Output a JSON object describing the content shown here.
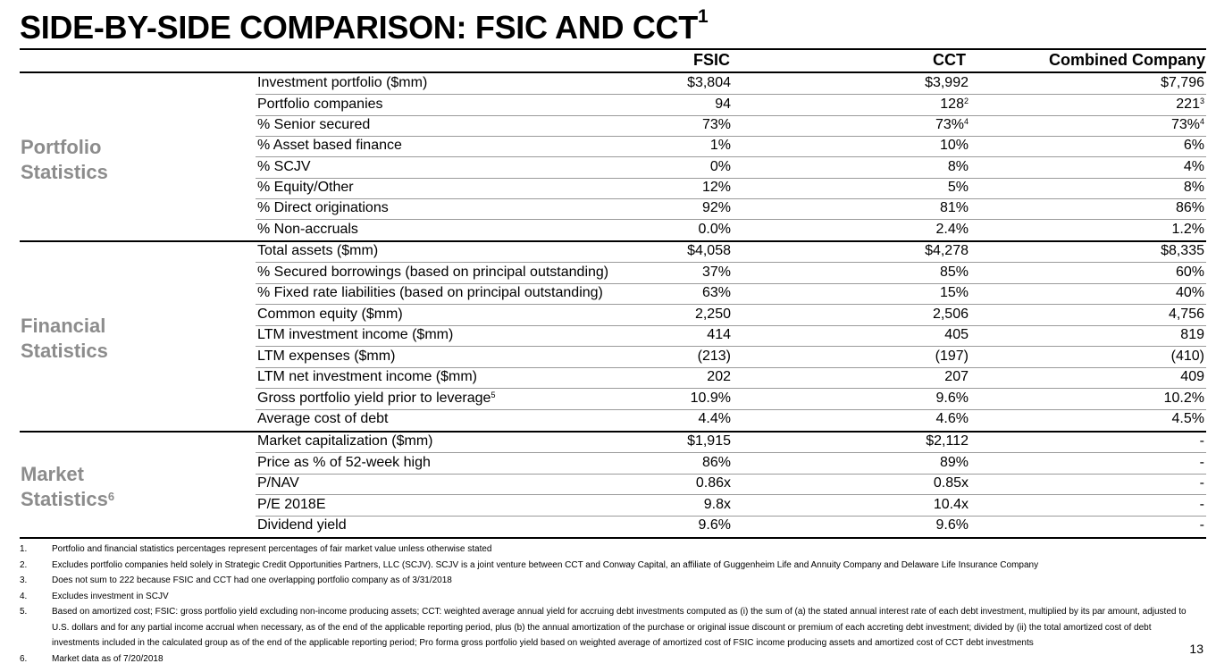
{
  "title": "SIDE-BY-SIDE COMPARISON: FSIC AND CCT",
  "title_sup": "1",
  "columns": {
    "fsic": "FSIC",
    "cct": "CCT",
    "combined": "Combined Company"
  },
  "sections": [
    {
      "label_line1": "Portfolio",
      "label_line2": "Statistics",
      "label_sup": ""
    },
    {
      "label_line1": "Financial",
      "label_line2": "Statistics",
      "label_sup": ""
    },
    {
      "label_line1": "Market",
      "label_line2": "Statistics",
      "label_sup": "6"
    }
  ],
  "rows": [
    {
      "label": "Investment portfolio ($mm)",
      "label_sup": "",
      "fsic": "$3,804",
      "cct": "$3,992",
      "cct_sup": "",
      "combined": "$7,796",
      "combined_sup": ""
    },
    {
      "label": "Portfolio companies",
      "label_sup": "",
      "fsic": "94",
      "cct": "128",
      "cct_sup": "2",
      "combined": "221",
      "combined_sup": "3"
    },
    {
      "label": "% Senior secured",
      "label_sup": "",
      "fsic": "73%",
      "cct": "73%",
      "cct_sup": "4",
      "combined": "73%",
      "combined_sup": "4"
    },
    {
      "label": "% Asset based finance",
      "label_sup": "",
      "fsic": "1%",
      "cct": "10%",
      "cct_sup": "",
      "combined": "6%",
      "combined_sup": ""
    },
    {
      "label": "% SCJV",
      "label_sup": "",
      "fsic": "0%",
      "cct": "8%",
      "cct_sup": "",
      "combined": "4%",
      "combined_sup": ""
    },
    {
      "label": "% Equity/Other",
      "label_sup": "",
      "fsic": "12%",
      "cct": "5%",
      "cct_sup": "",
      "combined": "8%",
      "combined_sup": ""
    },
    {
      "label": "% Direct originations",
      "label_sup": "",
      "fsic": "92%",
      "cct": "81%",
      "cct_sup": "",
      "combined": "86%",
      "combined_sup": ""
    },
    {
      "label": "% Non-accruals",
      "label_sup": "",
      "fsic": "0.0%",
      "cct": "2.4%",
      "cct_sup": "",
      "combined": "1.2%",
      "combined_sup": ""
    },
    {
      "label": "Total assets ($mm)",
      "label_sup": "",
      "fsic": "$4,058",
      "cct": "$4,278",
      "cct_sup": "",
      "combined": "$8,335",
      "combined_sup": ""
    },
    {
      "label": "% Secured borrowings (based on principal outstanding)",
      "label_sup": "",
      "fsic": "37%",
      "cct": "85%",
      "cct_sup": "",
      "combined": "60%",
      "combined_sup": ""
    },
    {
      "label": "% Fixed rate liabilities (based on principal outstanding)",
      "label_sup": "",
      "fsic": "63%",
      "cct": "15%",
      "cct_sup": "",
      "combined": "40%",
      "combined_sup": ""
    },
    {
      "label": "Common equity ($mm)",
      "label_sup": "",
      "fsic": "2,250",
      "cct": "2,506",
      "cct_sup": "",
      "combined": "4,756",
      "combined_sup": ""
    },
    {
      "label": "LTM investment income ($mm)",
      "label_sup": "",
      "fsic": "414",
      "cct": "405",
      "cct_sup": "",
      "combined": "819",
      "combined_sup": ""
    },
    {
      "label": "LTM expenses ($mm)",
      "label_sup": "",
      "fsic": "(213)",
      "cct": "(197)",
      "cct_sup": "",
      "combined": "(410)",
      "combined_sup": ""
    },
    {
      "label": "LTM net investment income ($mm)",
      "label_sup": "",
      "fsic": "202",
      "cct": "207",
      "cct_sup": "",
      "combined": "409",
      "combined_sup": ""
    },
    {
      "label": "Gross portfolio yield prior to leverage",
      "label_sup": "5",
      "fsic": "10.9%",
      "cct": "9.6%",
      "cct_sup": "",
      "combined": "10.2%",
      "combined_sup": ""
    },
    {
      "label": "Average cost of debt",
      "label_sup": "",
      "fsic": "4.4%",
      "cct": "4.6%",
      "cct_sup": "",
      "combined": "4.5%",
      "combined_sup": ""
    },
    {
      "label": "Market capitalization ($mm)",
      "label_sup": "",
      "fsic": "$1,915",
      "cct": "$2,112",
      "cct_sup": "",
      "combined": "-",
      "combined_sup": ""
    },
    {
      "label": "Price as % of 52-week high",
      "label_sup": "",
      "fsic": "86%",
      "cct": "89%",
      "cct_sup": "",
      "combined": "-",
      "combined_sup": ""
    },
    {
      "label": "P/NAV",
      "label_sup": "",
      "fsic": "0.86x",
      "cct": "0.85x",
      "cct_sup": "",
      "combined": "-",
      "combined_sup": ""
    },
    {
      "label": "P/E 2018E",
      "label_sup": "",
      "fsic": "9.8x",
      "cct": "10.4x",
      "cct_sup": "",
      "combined": "-",
      "combined_sup": ""
    },
    {
      "label": "Dividend yield",
      "label_sup": "",
      "fsic": "9.6%",
      "cct": "9.6%",
      "cct_sup": "",
      "combined": "-",
      "combined_sup": ""
    }
  ],
  "footnotes": [
    {
      "num": "1.",
      "text": "Portfolio and financial statistics percentages represent percentages of fair market value unless otherwise stated"
    },
    {
      "num": "2.",
      "text": "Excludes portfolio companies held solely in Strategic Credit Opportunities Partners, LLC (SCJV).  SCJV is a joint venture between CCT and Conway Capital, an affiliate of Guggenheim Life and Annuity Company and Delaware Life Insurance Company"
    },
    {
      "num": "3.",
      "text": "Does not sum to 222 because FSIC and CCT had one overlapping portfolio company as of 3/31/2018"
    },
    {
      "num": "4.",
      "text": "Excludes investment in SCJV"
    },
    {
      "num": "5.",
      "text": "Based on amortized cost;  FSIC: gross portfolio yield excluding non-income producing assets; CCT: weighted average annual yield for accruing debt investments computed as (i) the sum of (a) the stated annual interest rate of each debt investment, multiplied by its par amount, adjusted to U.S. dollars and for any partial income accrual when necessary, as of the end of the applicable reporting period, plus (b) the annual amortization of the purchase or original issue discount or premium of each accreting debt investment; divided by (ii) the total amortized cost of debt investments included in the calculated group as of the end of the applicable reporting period; Pro forma gross portfolio yield based on weighted average of amortized cost of FSIC income producing assets and amortized cost of CCT debt investments"
    },
    {
      "num": "6.",
      "text": "Market data as of 7/20/2018"
    }
  ],
  "page_number": "13"
}
